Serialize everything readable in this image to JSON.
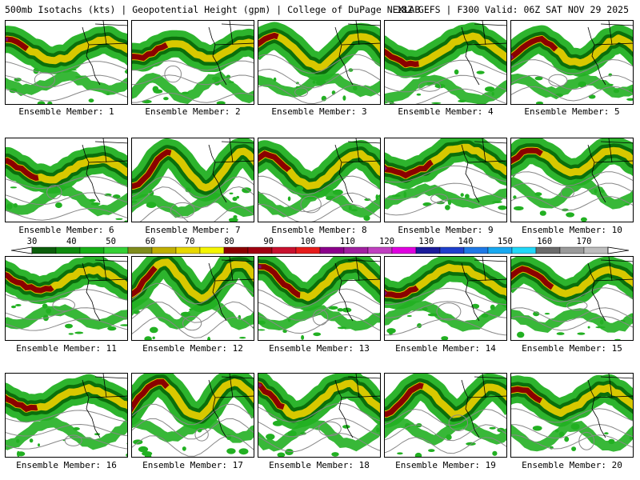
{
  "header": {
    "left_text": "500mb Isotachs (kts) | Geopotential Height (gpm) | College of DuPage NEXLAB",
    "right_text": "18Z GEFS | F300 Valid: 06Z SAT NOV 29 2025"
  },
  "members": [
    {
      "label": "Ensemble Member: 1"
    },
    {
      "label": "Ensemble Member: 2"
    },
    {
      "label": "Ensemble Member: 3"
    },
    {
      "label": "Ensemble Member: 4"
    },
    {
      "label": "Ensemble Member: 5"
    },
    {
      "label": "Ensemble Member: 6"
    },
    {
      "label": "Ensemble Member: 7"
    },
    {
      "label": "Ensemble Member: 8"
    },
    {
      "label": "Ensemble Member: 9"
    },
    {
      "label": "Ensemble Member: 10"
    },
    {
      "label": "Ensemble Member: 11"
    },
    {
      "label": "Ensemble Member: 12"
    },
    {
      "label": "Ensemble Member: 13"
    },
    {
      "label": "Ensemble Member: 14"
    },
    {
      "label": "Ensemble Member: 15"
    },
    {
      "label": "Ensemble Member: 16"
    },
    {
      "label": "Ensemble Member: 17"
    },
    {
      "label": "Ensemble Member: 18"
    },
    {
      "label": "Ensemble Member: 19"
    },
    {
      "label": "Ensemble Member: 20"
    }
  ],
  "colorbar": {
    "tick_labels": [
      "30",
      "40",
      "50",
      "60",
      "70",
      "80",
      "90",
      "100",
      "110",
      "120",
      "130",
      "140",
      "150",
      "160",
      "170"
    ],
    "colors": [
      "#0b5d0b",
      "#0e8a0e",
      "#17b017",
      "#35d035",
      "#7f8c1c",
      "#c0b000",
      "#e8d800",
      "#f5f500",
      "#8b0000",
      "#a00010",
      "#c8102e",
      "#e61b1b",
      "#8b008b",
      "#a020a0",
      "#c040c0",
      "#e000e0",
      "#1a1a9a",
      "#1e3fcc",
      "#1e78e6",
      "#18a8f0",
      "#20d8f8",
      "#6a6a6a",
      "#9a9a9a",
      "#bdbdbd"
    ]
  },
  "map_colors": {
    "green_light": "#22b022",
    "green_dark": "#0b6e0b",
    "yellow": "#d8c800",
    "dark_red": "#8b0000",
    "purple": "#7a1070",
    "height_contour": "#888888",
    "coastline": "#000000"
  }
}
